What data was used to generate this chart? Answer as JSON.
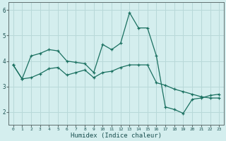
{
  "xlabel": "Humidex (Indice chaleur)",
  "bg_color": "#d4eeee",
  "grid_color": "#b8d8d8",
  "line_color": "#1a7060",
  "xlim": [
    -0.5,
    23.5
  ],
  "ylim": [
    1.5,
    6.3
  ],
  "xticks": [
    0,
    1,
    2,
    3,
    4,
    5,
    6,
    7,
    8,
    9,
    10,
    11,
    12,
    13,
    14,
    15,
    16,
    17,
    18,
    19,
    20,
    21,
    22,
    23
  ],
  "yticks": [
    2,
    3,
    4,
    5,
    6
  ],
  "series1_x": [
    0,
    1,
    2,
    3,
    4,
    5,
    6,
    7,
    8,
    9,
    10,
    11,
    12,
    13,
    14,
    15,
    16,
    17,
    18,
    19,
    20,
    21,
    22,
    23
  ],
  "series1_y": [
    3.85,
    3.3,
    4.2,
    4.3,
    4.45,
    4.4,
    4.0,
    3.95,
    3.9,
    3.55,
    4.65,
    4.45,
    4.7,
    5.9,
    5.3,
    5.3,
    4.2,
    2.2,
    2.1,
    1.95,
    2.5,
    2.55,
    2.65,
    2.7
  ],
  "series2_x": [
    0,
    1,
    2,
    3,
    4,
    5,
    6,
    7,
    8,
    9,
    10,
    11,
    12,
    13,
    14,
    15,
    16,
    17,
    18,
    19,
    20,
    21,
    22,
    23
  ],
  "series2_y": [
    3.85,
    3.3,
    3.35,
    3.5,
    3.7,
    3.75,
    3.45,
    3.55,
    3.65,
    3.35,
    3.55,
    3.6,
    3.75,
    3.85,
    3.85,
    3.85,
    3.15,
    3.05,
    2.9,
    2.8,
    2.7,
    2.6,
    2.55,
    2.55
  ]
}
